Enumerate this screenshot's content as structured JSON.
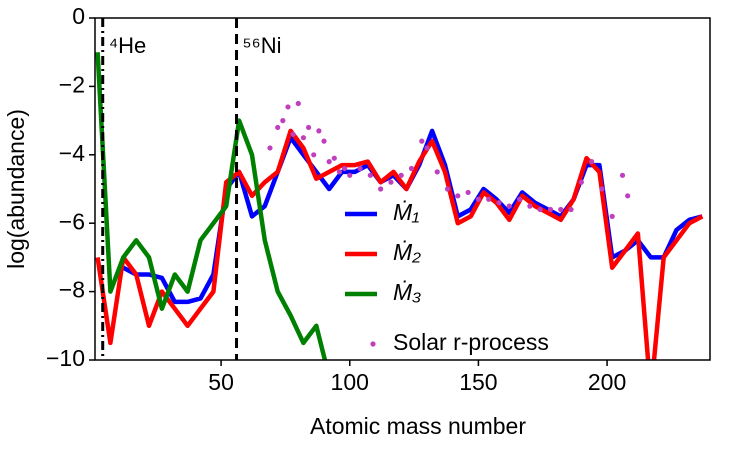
{
  "chart_data": {
    "type": "line",
    "xlabel": "Atomic mass number",
    "ylabel": "log(abundance)",
    "xlim": [
      1,
      240
    ],
    "ylim": [
      -10,
      0
    ],
    "xticks": [
      50,
      100,
      150,
      200
    ],
    "yticks": [
      {
        "value": -10,
        "label": "−10"
      },
      {
        "value": -8,
        "label": "−8"
      },
      {
        "value": -6,
        "label": "−6"
      },
      {
        "value": -4,
        "label": "−4"
      },
      {
        "value": -2,
        "label": "−2"
      },
      0
    ],
    "legend": "right",
    "vlines": [
      {
        "x": 4,
        "label": "⁴He",
        "style": "dashdot"
      },
      {
        "x": 56,
        "label": "⁵⁶Ni",
        "style": "dashed"
      }
    ],
    "x": [
      2,
      7,
      12,
      17,
      22,
      27,
      32,
      37,
      42,
      47,
      52,
      57,
      62,
      67,
      72,
      77,
      82,
      87,
      92,
      97,
      102,
      107,
      112,
      117,
      122,
      127,
      132,
      137,
      142,
      147,
      152,
      157,
      162,
      167,
      172,
      177,
      182,
      187,
      192,
      197,
      202,
      207,
      212,
      217,
      222,
      227,
      232,
      237
    ],
    "series": [
      {
        "name": "Ṁ₁",
        "color": "#0000ff",
        "values": [
          null,
          null,
          -7.3,
          -7.5,
          -7.5,
          -7.6,
          -8.3,
          -8.3,
          -8.2,
          -7.5,
          -5,
          -4.5,
          -5.8,
          -5.5,
          -4.5,
          -3.5,
          -4,
          -4.5,
          -5,
          -4.5,
          -4.5,
          -4.3,
          -4.8,
          -4.6,
          -5,
          -4.3,
          -3.3,
          -4.3,
          -5.8,
          -5.6,
          -5,
          -5.3,
          -5.7,
          -5.1,
          -5.4,
          -5.6,
          -5.8,
          -5.3,
          -4.3,
          -4.3,
          -7,
          -6.8,
          -6.5,
          -7,
          -7,
          -6.2,
          -5.9,
          -5.8
        ]
      },
      {
        "name": "Ṁ₂",
        "color": "#ff0000",
        "values": [
          -7,
          -9.5,
          -7,
          -7.5,
          -9,
          -8,
          -8.5,
          -9,
          -8.5,
          -8,
          -4.8,
          -4.5,
          -5.2,
          -4.8,
          -4.5,
          -3.3,
          -3.8,
          -4.7,
          -4.5,
          -4.3,
          -4.3,
          -4.2,
          -4.8,
          -4.5,
          -5,
          -4.2,
          -3.6,
          -4.5,
          -6,
          -5.8,
          -5.1,
          -5.4,
          -5.9,
          -5.2,
          -5.5,
          -5.7,
          -5.9,
          -5.3,
          -4.1,
          -4.5,
          -7.3,
          -6.8,
          -6.3,
          -11,
          -7,
          -6.5,
          -6,
          -5.8
        ]
      },
      {
        "name": "Ṁ₃",
        "color": "#008000",
        "values": [
          -1,
          -8,
          -7,
          -6.5,
          -7,
          -8.5,
          -7.5,
          -8,
          -6.5,
          -6,
          -5.5,
          -3,
          -4,
          -6.5,
          -8,
          -8.7,
          -9.5,
          -9,
          -10.5,
          null,
          null,
          null,
          null,
          null,
          null,
          null,
          null,
          null,
          null,
          null,
          null,
          null,
          null,
          null,
          null,
          null,
          null,
          null,
          null,
          null,
          null,
          null,
          null,
          null,
          null,
          null,
          null,
          null
        ]
      },
      {
        "name": "Solar r-process",
        "color": "#bf3fbf",
        "kind": "scatter",
        "x": [
          69,
          72,
          74,
          76,
          78,
          80,
          82,
          84,
          86,
          88,
          90,
          92,
          94,
          96,
          98,
          100,
          104,
          108,
          112,
          116,
          120,
          124,
          128,
          130,
          134,
          138,
          142,
          146,
          150,
          154,
          158,
          162,
          166,
          170,
          174,
          178,
          182,
          186,
          190,
          194,
          198,
          202,
          206,
          208
        ],
        "values": [
          -3.8,
          -3.2,
          -3,
          -2.6,
          -3.4,
          -2.5,
          -3.5,
          -3.2,
          -4,
          -3.3,
          -3.6,
          -4.2,
          -4.1,
          -4.5,
          -4.4,
          -4.6,
          -4.4,
          -4.6,
          -5,
          -4.8,
          -4.6,
          -4.4,
          -3.6,
          -3.8,
          -4.5,
          -5,
          -5.2,
          -5.1,
          -5.3,
          -5.3,
          -5.4,
          -5.5,
          -5.3,
          -5.5,
          -5.6,
          -5.6,
          -5.6,
          -5.6,
          -4.8,
          -4.2,
          -5,
          -5.8,
          -4.6,
          -5.2
        ]
      }
    ]
  }
}
